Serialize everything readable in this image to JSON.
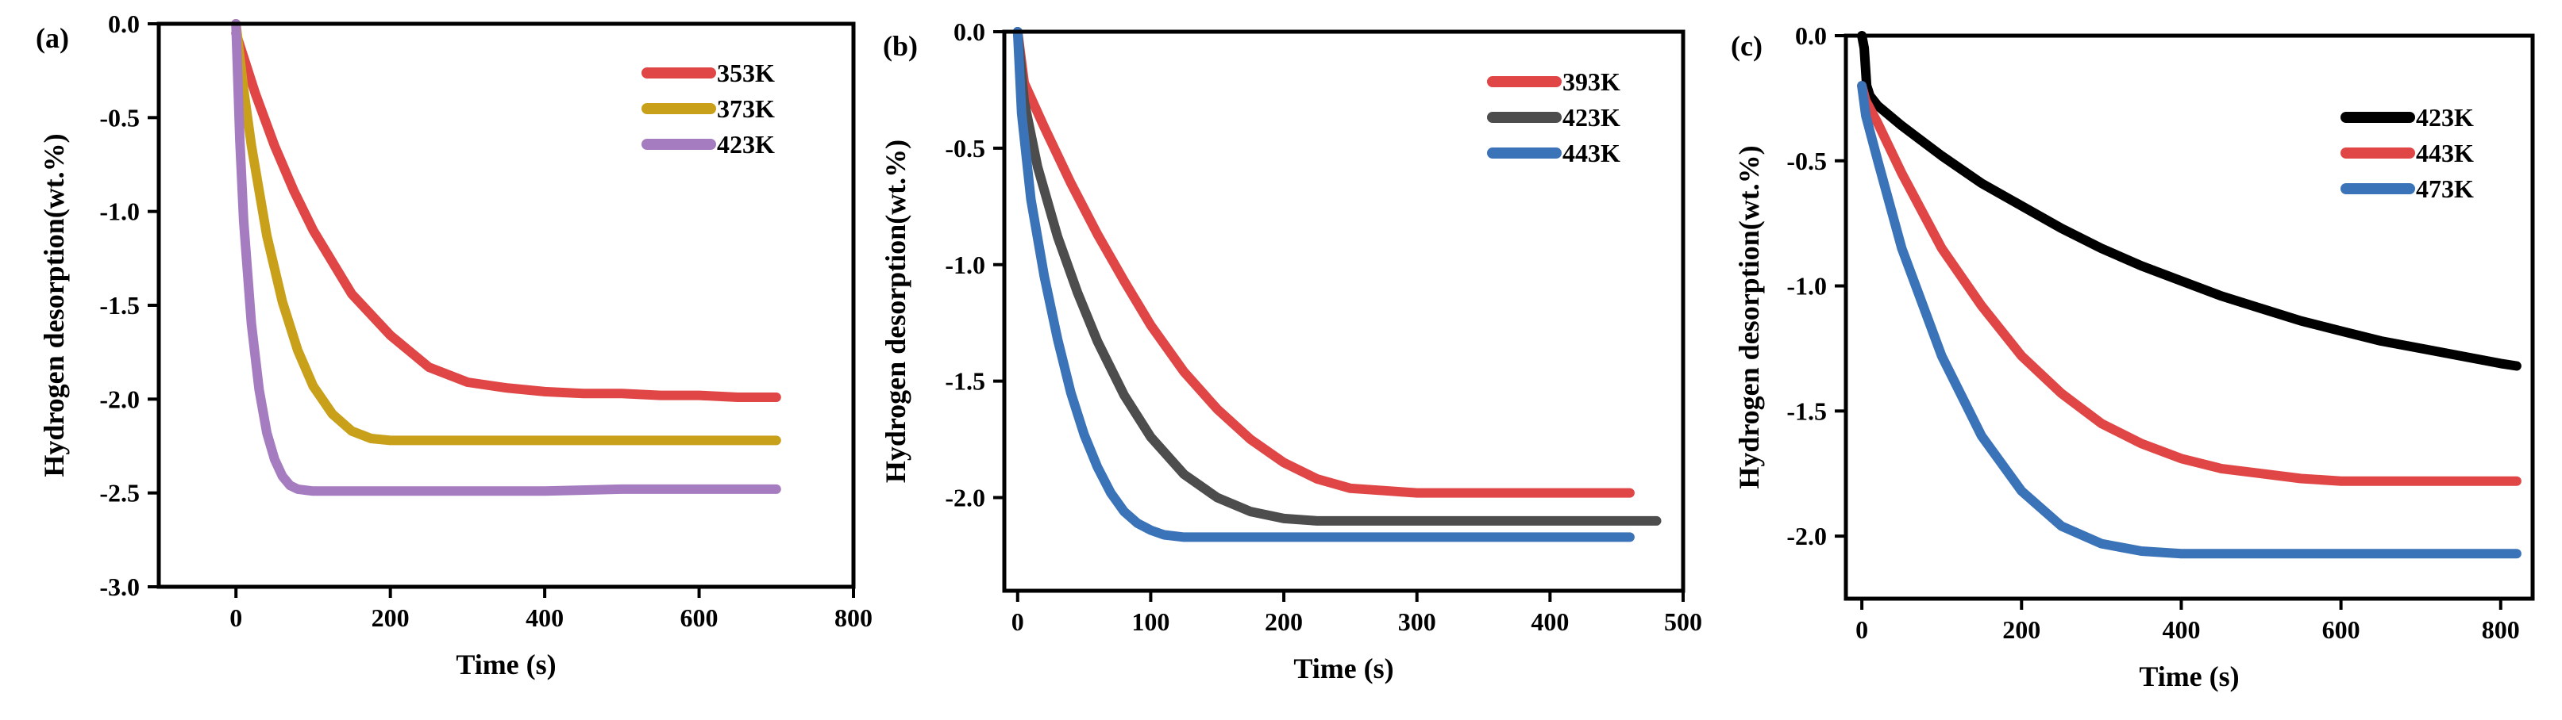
{
  "chart_data": [
    {
      "type": "line",
      "panel_label": "(a)",
      "xlabel": "Time (s)",
      "ylabel": "Hydrogen desorption(wt.%)",
      "xlim": [
        -100,
        800
      ],
      "ylim": [
        -3.0,
        0.0
      ],
      "xticks": [
        0,
        200,
        400,
        600,
        800
      ],
      "xtick_labels": [
        "0",
        "200",
        "400",
        "600",
        "800"
      ],
      "yticks": [
        0.0,
        -0.5,
        -1.0,
        -1.5,
        -2.0,
        -2.5,
        -3.0
      ],
      "ytick_labels": [
        "0.0",
        "-0.5",
        "-1.0",
        "-1.5",
        "-2.0",
        "-2.5",
        "-3.0"
      ],
      "legend_position": "top-right",
      "series": [
        {
          "name": "353K",
          "color": "#e04646",
          "start": 0,
          "end": 700,
          "x": [
            0,
            25,
            50,
            75,
            100,
            150,
            200,
            250,
            300,
            350,
            400,
            450,
            500,
            550,
            600,
            650,
            700
          ],
          "y": [
            -0.05,
            -0.37,
            -0.65,
            -0.89,
            -1.1,
            -1.44,
            -1.66,
            -1.83,
            -1.91,
            -1.94,
            -1.96,
            -1.97,
            -1.97,
            -1.98,
            -1.98,
            -1.99,
            -1.99
          ]
        },
        {
          "name": "373K",
          "color": "#c9a01a",
          "start": 0,
          "end": 700,
          "x": [
            0,
            10,
            20,
            40,
            60,
            80,
            100,
            125,
            150,
            175,
            200,
            250,
            300,
            400,
            500,
            600,
            700
          ],
          "y": [
            0.0,
            -0.35,
            -0.65,
            -1.13,
            -1.48,
            -1.74,
            -1.93,
            -2.08,
            -2.17,
            -2.21,
            -2.22,
            -2.22,
            -2.22,
            -2.22,
            -2.22,
            -2.22,
            -2.22
          ]
        },
        {
          "name": "423K",
          "color": "#a57cc0",
          "start": 0,
          "end": 700,
          "x": [
            0,
            5,
            10,
            20,
            30,
            40,
            50,
            60,
            70,
            80,
            100,
            150,
            200,
            300,
            400,
            500,
            600,
            700
          ],
          "y": [
            0.0,
            -0.62,
            -1.05,
            -1.6,
            -1.95,
            -2.18,
            -2.32,
            -2.41,
            -2.46,
            -2.48,
            -2.49,
            -2.49,
            -2.49,
            -2.49,
            -2.49,
            -2.48,
            -2.48,
            -2.48
          ]
        }
      ]
    },
    {
      "type": "line",
      "panel_label": "(b)",
      "xlabel": "Time (s)",
      "ylabel": "Hydrogen desorption(wt.%)",
      "xlim": [
        -10,
        500
      ],
      "ylim": [
        -2.4,
        0.0
      ],
      "xticks": [
        0,
        100,
        200,
        300,
        400,
        500
      ],
      "xtick_labels": [
        "0",
        "100",
        "200",
        "300",
        "400",
        "500"
      ],
      "yticks": [
        0.0,
        -0.5,
        -1.0,
        -1.5,
        -2.0
      ],
      "ytick_labels": [
        "0.0",
        "-0.5",
        "-1.0",
        "-1.5",
        "-2.0"
      ],
      "legend_position": "top-right",
      "series": [
        {
          "name": "393K",
          "color": "#e04646",
          "start": 0,
          "end": 460,
          "x": [
            0,
            5,
            20,
            40,
            60,
            80,
            100,
            125,
            150,
            175,
            200,
            225,
            250,
            275,
            300,
            350,
            400,
            460
          ],
          "y": [
            0.0,
            -0.22,
            -0.41,
            -0.65,
            -0.87,
            -1.07,
            -1.26,
            -1.46,
            -1.62,
            -1.75,
            -1.85,
            -1.92,
            -1.96,
            -1.97,
            -1.98,
            -1.98,
            -1.98,
            -1.98
          ]
        },
        {
          "name": "423K",
          "color": "#4d4d4d",
          "start": 0,
          "end": 480,
          "x": [
            0,
            5,
            15,
            30,
            45,
            60,
            80,
            100,
            125,
            150,
            175,
            200,
            225,
            250,
            300,
            350,
            400,
            480
          ],
          "y": [
            0.0,
            -0.3,
            -0.58,
            -0.88,
            -1.12,
            -1.33,
            -1.56,
            -1.74,
            -1.9,
            -2.0,
            -2.06,
            -2.09,
            -2.1,
            -2.1,
            -2.1,
            -2.1,
            -2.1,
            -2.1
          ]
        },
        {
          "name": "443K",
          "color": "#3b73b9",
          "start": 0,
          "end": 460,
          "x": [
            0,
            3,
            10,
            20,
            30,
            40,
            50,
            60,
            70,
            80,
            90,
            100,
            110,
            125,
            150,
            200,
            300,
            460
          ],
          "y": [
            0.0,
            -0.35,
            -0.72,
            -1.05,
            -1.32,
            -1.55,
            -1.73,
            -1.87,
            -1.98,
            -2.06,
            -2.11,
            -2.14,
            -2.16,
            -2.17,
            -2.17,
            -2.17,
            -2.17,
            -2.17
          ]
        }
      ]
    },
    {
      "type": "line",
      "panel_label": "(c)",
      "xlabel": "Time (s)",
      "ylabel": "Hydrogen desorption(wt.%)",
      "xlim": [
        -20,
        840
      ],
      "ylim": [
        -2.25,
        0.0
      ],
      "xticks": [
        0,
        200,
        400,
        600,
        800
      ],
      "xtick_labels": [
        "0",
        "200",
        "400",
        "600",
        "800"
      ],
      "yticks": [
        0.0,
        -0.5,
        -1.0,
        -1.5,
        -2.0
      ],
      "ytick_labels": [
        "0.0",
        "-0.5",
        "-1.0",
        "-1.5",
        "-2.0"
      ],
      "legend_position": "top-right",
      "series": [
        {
          "name": "423K",
          "color": "#000000",
          "start": 0,
          "end": 820,
          "x": [
            0,
            3,
            6,
            10,
            20,
            50,
            100,
            150,
            200,
            250,
            300,
            350,
            400,
            450,
            500,
            550,
            600,
            650,
            700,
            750,
            800,
            820
          ],
          "y": [
            0.0,
            -0.05,
            -0.2,
            -0.24,
            -0.28,
            -0.36,
            -0.48,
            -0.59,
            -0.68,
            -0.77,
            -0.85,
            -0.92,
            -0.98,
            -1.04,
            -1.09,
            -1.14,
            -1.18,
            -1.22,
            -1.25,
            -1.28,
            -1.31,
            -1.32
          ]
        },
        {
          "name": "443K",
          "color": "#e04646",
          "start": 0,
          "end": 820,
          "x": [
            0,
            5,
            20,
            50,
            100,
            150,
            200,
            250,
            300,
            350,
            400,
            450,
            500,
            550,
            600,
            700,
            820
          ],
          "y": [
            -0.2,
            -0.26,
            -0.35,
            -0.55,
            -0.85,
            -1.08,
            -1.28,
            -1.43,
            -1.55,
            -1.63,
            -1.69,
            -1.73,
            -1.75,
            -1.77,
            -1.78,
            -1.78,
            -1.78
          ]
        },
        {
          "name": "473K",
          "color": "#3b73b9",
          "start": 0,
          "end": 820,
          "x": [
            0,
            5,
            20,
            50,
            100,
            150,
            200,
            250,
            300,
            350,
            400,
            500,
            600,
            700,
            820
          ],
          "y": [
            -0.2,
            -0.32,
            -0.5,
            -0.85,
            -1.28,
            -1.6,
            -1.82,
            -1.96,
            -2.03,
            -2.06,
            -2.07,
            -2.07,
            -2.07,
            -2.07,
            -2.07
          ]
        }
      ]
    }
  ]
}
